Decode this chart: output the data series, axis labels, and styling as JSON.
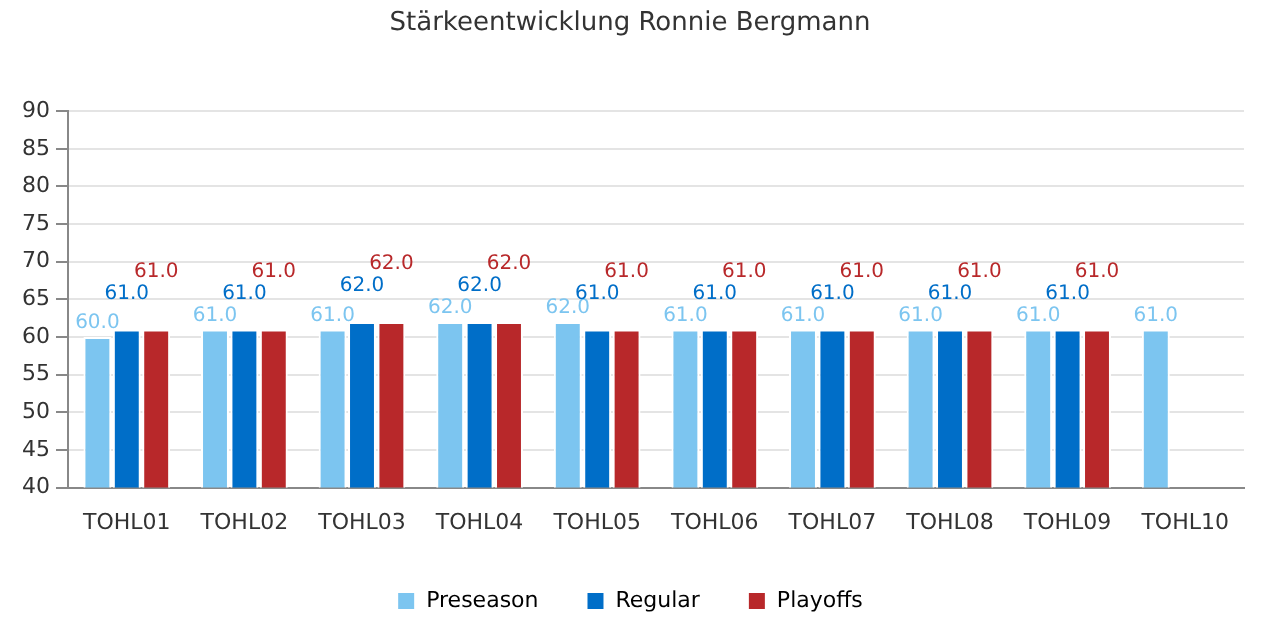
{
  "chart_data": {
    "type": "bar",
    "title": "Stärkeentwicklung Ronnie Bergmann",
    "categories": [
      "TOHL01",
      "TOHL02",
      "TOHL03",
      "TOHL04",
      "TOHL05",
      "TOHL06",
      "TOHL07",
      "TOHL08",
      "TOHL09",
      "TOHL10"
    ],
    "series": [
      {
        "name": "Preseason",
        "color": "#7cc5f0",
        "values": [
          60,
          61,
          61,
          62,
          62,
          61,
          61,
          61,
          61,
          61
        ],
        "value_labels": [
          "60.0",
          "61.0",
          "61.0",
          "62.0",
          "62.0",
          "61.0",
          "61.0",
          "61.0",
          "61.0",
          "61.0"
        ]
      },
      {
        "name": "Regular",
        "color": "#006ec8",
        "values": [
          61,
          61,
          62,
          62,
          61,
          61,
          61,
          61,
          61,
          null
        ],
        "value_labels": [
          "61.0",
          "61.0",
          "62.0",
          "62.0",
          "61.0",
          "61.0",
          "61.0",
          "61.0",
          "61.0",
          null
        ]
      },
      {
        "name": "Playoffs",
        "color": "#b8282a",
        "values": [
          61,
          61,
          62,
          62,
          61,
          61,
          61,
          61,
          61,
          null
        ],
        "value_labels": [
          "61.0",
          "61.0",
          "62.0",
          "62.0",
          "61.0",
          "61.0",
          "61.0",
          "61.0",
          "61.0",
          null
        ]
      }
    ],
    "ylim": [
      40,
      90
    ],
    "yticks": [
      40,
      45,
      50,
      55,
      60,
      65,
      70,
      75,
      80,
      85,
      90
    ],
    "grid": "y",
    "legend": "bottom"
  }
}
